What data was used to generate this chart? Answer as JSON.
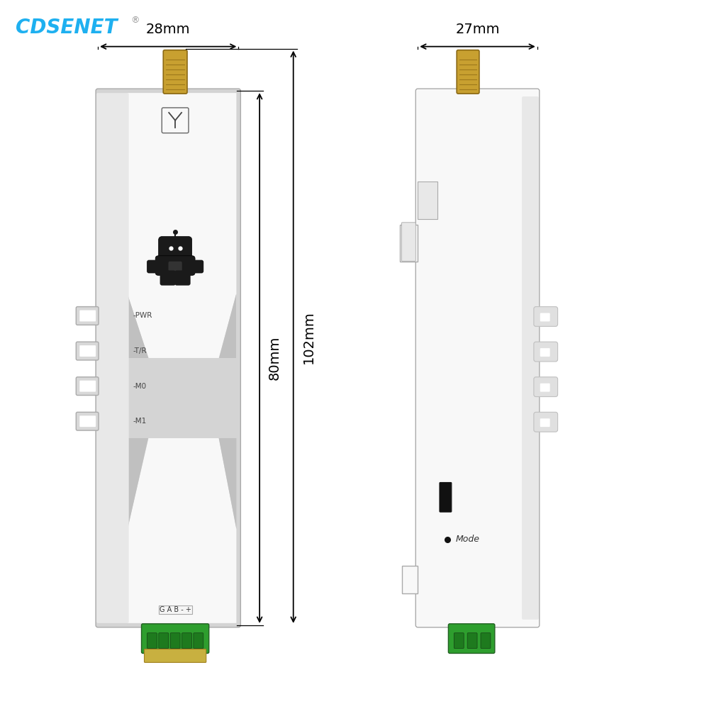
{
  "bg_color": "#ffffff",
  "logo_text": "CDSENET",
  "logo_color_main": "#1eb0f0",
  "logo_reg": "®",
  "dim_28mm": "28mm",
  "dim_27mm": "27mm",
  "dim_80mm": "80mm",
  "dim_102mm": "102mm",
  "led_labels": [
    "-PWR",
    "-T/R",
    "-M0",
    "-M1"
  ],
  "terminal_labels": "G A B - +",
  "mode_label": "Mode",
  "body_color_outer": "#d4d4d4",
  "body_color_inner": "#e8e8e8",
  "body_color_white": "#f8f8f8",
  "body_shadow": "#c0c0c0",
  "body_center_light": "#f0f0f0",
  "antenna_color": "#c8a030",
  "antenna_dark": "#8B6914",
  "terminal_color": "#2e9e2e",
  "terminal_dark": "#226022",
  "pcb_color": "#c8b040",
  "dim_color": "#000000"
}
